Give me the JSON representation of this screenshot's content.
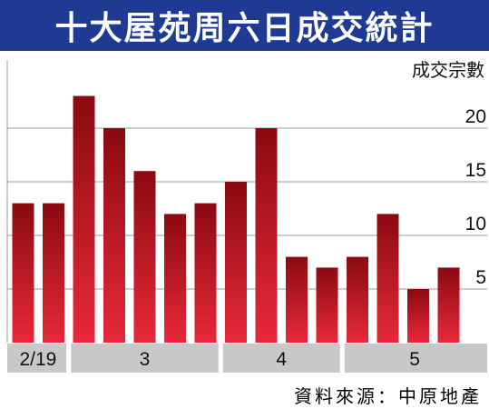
{
  "title": "十大屋苑周六日成交統計",
  "source": "資料來源：中原地產",
  "chart_data": {
    "type": "bar",
    "ylabel": "成交宗數",
    "ylim": [
      0,
      25
    ],
    "yticks": [
      5,
      10,
      15,
      20
    ],
    "grid": true,
    "bar_color_top": "#8b0a10",
    "bar_color_bottom": "#e8293a",
    "values": [
      13,
      13,
      23,
      20,
      16,
      12,
      13,
      15,
      20,
      8,
      7,
      8,
      12,
      5,
      7
    ],
    "month_groups": [
      {
        "label": "2/19",
        "bars": 2
      },
      {
        "label": "3",
        "bars": 5
      },
      {
        "label": "4",
        "bars": 4
      },
      {
        "label": "5",
        "bars": 4
      }
    ]
  }
}
